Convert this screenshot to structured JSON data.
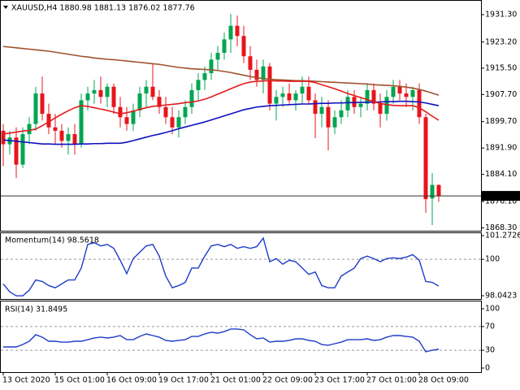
{
  "chart_data": [
    {
      "type": "candlestick",
      "title": "XAUUSD,H4 1880.98 1881.13 1876.02 1877.76",
      "categories": [
        "13 Oct 2020",
        null,
        null,
        null,
        null,
        null,
        null,
        null,
        "15 Oct 01:00",
        null,
        null,
        null,
        null,
        null,
        null,
        null,
        "16 Oct 09:00",
        null,
        null,
        null,
        null,
        null,
        null,
        null,
        "19 Oct 17:00",
        null,
        null,
        null,
        null,
        null,
        null,
        null,
        "21 Oct 01:00",
        null,
        null,
        null,
        null,
        null,
        null,
        null,
        "22 Oct 09:00",
        null,
        null,
        null,
        null,
        null,
        null,
        null,
        "23 Oct 17:00",
        null,
        null,
        null,
        null,
        null,
        null,
        null,
        "27 Oct 01:00",
        null,
        null,
        null,
        null,
        null,
        null,
        null,
        "28 Oct 09:00",
        null,
        null,
        null
      ],
      "open": [
        1897,
        1893,
        1895,
        1887,
        1896,
        1899,
        1908,
        1902,
        1898,
        1897,
        1894,
        1896,
        1893,
        1906,
        1908,
        1909,
        1907,
        1910,
        1904,
        1901,
        1899,
        1903,
        1908,
        1910,
        1907,
        1904,
        1901,
        1898,
        1901,
        1904,
        1909,
        1912,
        1914,
        1918,
        1920,
        1924,
        1928,
        1925,
        1919,
        1915,
        1912,
        1916,
        1905,
        1907,
        1908,
        1906,
        1908,
        1910,
        1906,
        1902,
        1904,
        1898,
        1901,
        1903,
        1907,
        1904,
        1905,
        1909,
        1905,
        1902,
        1907,
        1910,
        1908,
        1907,
        1909,
        1901,
        1877,
        1880.98
      ],
      "high": [
        1899,
        1897,
        1898,
        1898,
        1901,
        1910,
        1913,
        1905,
        1902,
        1899,
        1898,
        1899,
        1908,
        1910,
        1912,
        1913,
        1911,
        1911,
        1907,
        1904,
        1905,
        1910,
        1912,
        1917,
        1909,
        1907,
        1904,
        1903,
        1906,
        1911,
        1914,
        1916,
        1920,
        1922,
        1926,
        1931.5,
        1931,
        1928,
        1922,
        1918,
        1918,
        1917,
        1909,
        1910,
        1911,
        1909,
        1913,
        1913,
        1908,
        1907,
        1906,
        1903,
        1906,
        1909,
        1909,
        1907,
        1911,
        1911,
        1908,
        1909,
        1912,
        1912,
        1911,
        1910,
        1911,
        1902,
        1884.5,
        1881.13
      ],
      "low": [
        1886.5,
        1890,
        1883,
        1886,
        1893,
        1897,
        1900,
        1896,
        1893,
        1892,
        1890,
        1890,
        1892,
        1903,
        1905,
        1905,
        1904,
        1902,
        1898,
        1897,
        1897,
        1901,
        1904,
        1906,
        1902,
        1899,
        1896,
        1895,
        1899,
        1902,
        1906,
        1909,
        1912,
        1915,
        1918,
        1920,
        1922,
        1917,
        1912,
        1910,
        1908,
        1903,
        1900,
        1904,
        1905,
        1903,
        1905,
        1905,
        1894.8,
        1898,
        1891.2,
        1896,
        1899,
        1901,
        1902,
        1901,
        1903,
        1903,
        1898,
        1900,
        1905,
        1906,
        1904,
        1903,
        1899,
        1872.7,
        1869.1,
        1876.02
      ],
      "close": [
        1893,
        1895,
        1887,
        1896,
        1899,
        1908,
        1902,
        1898,
        1897,
        1894,
        1896,
        1893,
        1906,
        1908,
        1909,
        1907,
        1910,
        1904,
        1901,
        1899,
        1903,
        1908,
        1910,
        1907,
        1904,
        1901,
        1898,
        1901,
        1904,
        1909,
        1912,
        1914,
        1918,
        1920,
        1924,
        1928,
        1925,
        1919,
        1915,
        1912,
        1916,
        1905,
        1907,
        1908,
        1906,
        1908,
        1910,
        1906,
        1902,
        1904,
        1898,
        1901,
        1903,
        1907,
        1904,
        1905,
        1909,
        1905,
        1902,
        1907,
        1910,
        1908,
        1907,
        1909,
        1901,
        1876.8,
        1881,
        1877.76
      ],
      "up_color": "#00a651",
      "down_color": "#e8141c",
      "series": [
        {
          "color": "#a0522d",
          "values": [
            1921.9,
            1921.7,
            1921.5,
            1921.3,
            1921.1,
            1920.9,
            1920.7,
            1920.5,
            1920.2,
            1919.9,
            1919.6,
            1919.3,
            1919.0,
            1918.8,
            1918.5,
            1918.3,
            1918.1,
            1918.0,
            1917.8,
            1917.6,
            1917.4,
            1917.2,
            1917.0,
            1916.8,
            1916.6,
            1916.3,
            1916.0,
            1915.7,
            1915.5,
            1915.3,
            1915.2,
            1915.1,
            1915.0,
            1914.8,
            1914.5,
            1914.2,
            1913.8,
            1913.4,
            1913.0,
            1912.7,
            1912.4,
            1912.2,
            1912.1,
            1912.0,
            1911.9,
            1911.8,
            1911.8,
            1911.7,
            1911.6,
            1911.5,
            1911.4,
            1911.3,
            1911.2,
            1911.1,
            1911.0,
            1910.9,
            1910.8,
            1910.6,
            1910.5,
            1910.4,
            1910.3,
            1910.1,
            1909.9,
            1909.6,
            1909.2,
            1908.7,
            1908.1,
            1907.5
          ]
        },
        {
          "color": "#1010c0",
          "values": [
            1894.3,
            1894.1,
            1893.9,
            1893.7,
            1893.5,
            1893.3,
            1893.1,
            1893.1,
            1893.0,
            1893.0,
            1893.0,
            1893.0,
            1893.1,
            1893.1,
            1893.2,
            1893.2,
            1893.3,
            1893.3,
            1893.3,
            1893.6,
            1894.1,
            1894.6,
            1895.1,
            1895.6,
            1896.0,
            1896.5,
            1897.0,
            1897.6,
            1898.1,
            1898.6,
            1899.1,
            1899.6,
            1900.2,
            1900.8,
            1901.4,
            1902.0,
            1902.6,
            1903.2,
            1903.6,
            1904.0,
            1904.2,
            1904.4,
            1904.5,
            1904.6,
            1904.7,
            1904.8,
            1904.9,
            1904.9,
            1905.0,
            1905.1,
            1905.1,
            1905.2,
            1905.2,
            1905.3,
            1905.3,
            1905.4,
            1905.4,
            1905.5,
            1905.5,
            1905.6,
            1905.6,
            1905.7,
            1905.7,
            1905.6,
            1905.5,
            1905.2,
            1904.8,
            1904.4
          ]
        },
        {
          "color": "#e41a1c",
          "values": [
            1896.0,
            1896.3,
            1896.6,
            1896.9,
            1897.1,
            1897.5,
            1898.5,
            1899.6,
            1900.8,
            1901.9,
            1902.9,
            1903.8,
            1904.4,
            1904.2,
            1903.8,
            1903.4,
            1903.0,
            1902.5,
            1902.0,
            1902.3,
            1902.8,
            1903.3,
            1903.8,
            1904.2,
            1904.4,
            1904.6,
            1904.8,
            1905.0,
            1905.3,
            1905.5,
            1905.8,
            1906.3,
            1907.0,
            1907.8,
            1908.6,
            1909.4,
            1910.2,
            1910.9,
            1911.4,
            1911.6,
            1911.7,
            1911.8,
            1911.7,
            1911.7,
            1911.6,
            1911.6,
            1911.6,
            1911.6,
            1911.2,
            1910.6,
            1910.0,
            1909.4,
            1908.7,
            1908.0,
            1907.4,
            1906.8,
            1906.2,
            1905.6,
            1905.1,
            1904.7,
            1904.5,
            1904.4,
            1904.4,
            1904.4,
            1903.8,
            1902.6,
            1901.3,
            1900.1
          ]
        }
      ],
      "last_price": 1877.76,
      "ylim": [
        1867.46,
        1935.14
      ],
      "yticks": [
        {
          "value": 1931.3,
          "label": "1931.30"
        },
        {
          "value": 1923.2,
          "label": "1923.20"
        },
        {
          "value": 1915.5,
          "label": "1915.50"
        },
        {
          "value": 1907.7,
          "label": "1907.70"
        },
        {
          "value": 1899.7,
          "label": "1899.70"
        },
        {
          "value": 1891.9,
          "label": "1891.90"
        },
        {
          "value": 1884.1,
          "label": "1884.10"
        },
        {
          "value": 1876.1,
          "label": "1876.10"
        },
        {
          "value": 1868.3,
          "label": "1868.30"
        }
      ]
    },
    {
      "type": "line",
      "title": "Momentum(14) 98.5618",
      "series": [
        {
          "color": "#1e3cc8",
          "values": [
            98.68,
            98.25,
            98.04,
            98.04,
            98.34,
            98.89,
            98.81,
            98.59,
            98.47,
            98.68,
            98.89,
            98.89,
            99.53,
            100.8,
            100.89,
            100.72,
            100.8,
            100.59,
            99.95,
            99.23,
            100.04,
            100.38,
            100.72,
            100.8,
            100.17,
            99.1,
            98.47,
            98.59,
            98.76,
            99.53,
            99.53,
            100.17,
            100.72,
            100.8,
            100.68,
            100.8,
            100.59,
            100.68,
            100.59,
            100.68,
            101.14,
            99.87,
            100.04,
            99.74,
            99.95,
            99.87,
            99.53,
            99.19,
            99.32,
            98.59,
            98.47,
            98.47,
            99.1,
            99.32,
            99.53,
            100.04,
            100.17,
            100.04,
            99.87,
            100.04,
            100.08,
            100.04,
            100.12,
            100.25,
            99.95,
            98.81,
            98.76,
            98.5618
          ]
        }
      ],
      "ylim": [
        98.0423,
        101.2726
      ],
      "yticks": [
        101.2726,
        100,
        98.0423
      ]
    },
    {
      "type": "line",
      "title": "RSI(14) 31.8495",
      "series": [
        {
          "color": "#1e3cc8",
          "values": [
            35.6,
            35.6,
            35.6,
            39.7,
            45.2,
            56.2,
            52.1,
            45.2,
            45.2,
            43.8,
            43.8,
            45.2,
            45.2,
            47.9,
            50.7,
            52.1,
            50.7,
            52.1,
            54.8,
            47.9,
            47.9,
            53.4,
            57.5,
            54.8,
            52.1,
            46.6,
            45.2,
            46.6,
            47.9,
            53.4,
            53.4,
            57.5,
            60.3,
            58.9,
            61.6,
            65.8,
            65.8,
            64.4,
            56.2,
            49.3,
            50.7,
            43.8,
            45.2,
            45.2,
            46.6,
            49.3,
            49.3,
            46.6,
            45.2,
            39.7,
            38.4,
            41.1,
            43.8,
            47.9,
            47.9,
            47.9,
            49.3,
            46.6,
            47.9,
            52.1,
            54.8,
            54.8,
            53.4,
            52.1,
            45.2,
            27.4,
            30.1,
            31.8495
          ]
        }
      ],
      "ylim": [
        0,
        100
      ],
      "yticks": [
        100,
        70,
        30,
        0
      ]
    }
  ]
}
